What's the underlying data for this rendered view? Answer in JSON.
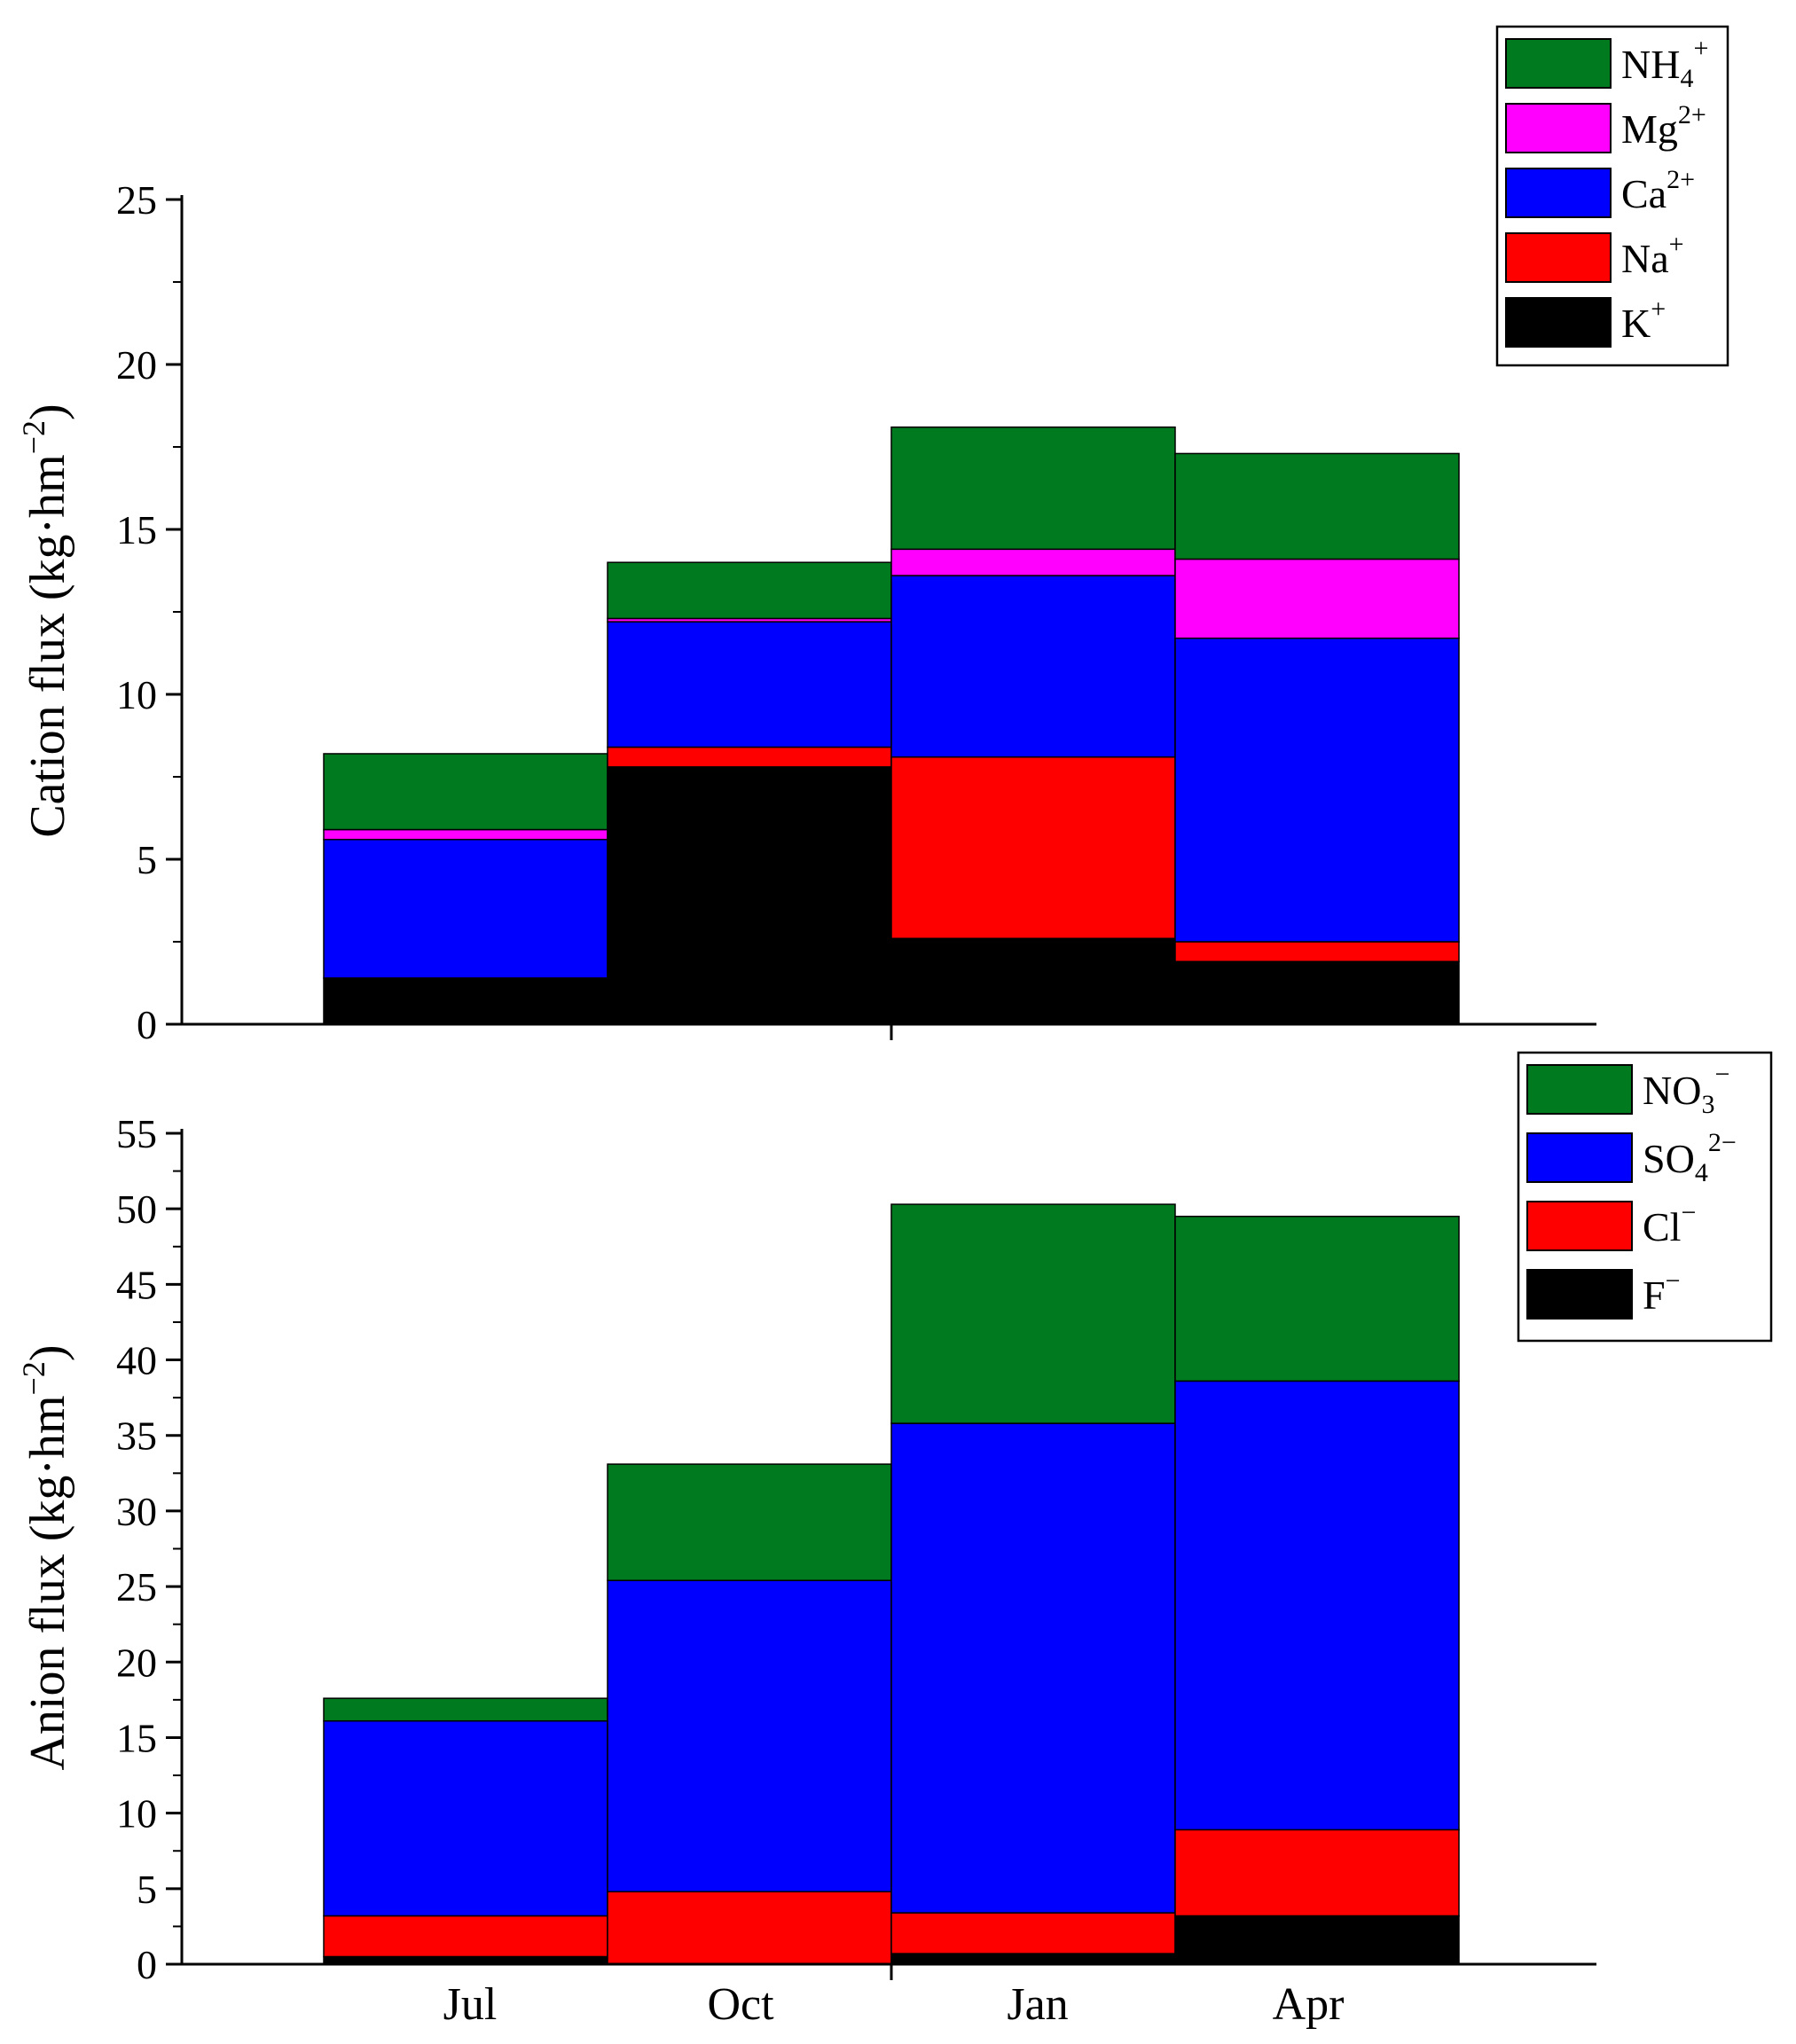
{
  "chart_data": [
    {
      "type": "bar",
      "stacked": true,
      "panel": "top",
      "title": "",
      "xlabel": "",
      "ylabel": "Cation flux (kg·hm",
      "ylabel_sup": "−2",
      "ylabel_close": ")",
      "ylim": [
        0,
        25
      ],
      "yticks": [
        0,
        5,
        10,
        15,
        20,
        25
      ],
      "categories": [
        "Jul",
        "Oct",
        "Jan",
        "Apr"
      ],
      "show_category_labels": false,
      "legend_position": "top-right",
      "series": [
        {
          "name": "K",
          "sup": "+",
          "color": "#000000",
          "values": [
            1.4,
            7.8,
            2.6,
            1.9
          ]
        },
        {
          "name": "Na",
          "sup": "+",
          "color": "#ff0000",
          "values": [
            0.0,
            0.6,
            5.5,
            0.6
          ]
        },
        {
          "name": "Ca",
          "sup": "2+",
          "color": "#0000ff",
          "values": [
            4.2,
            3.8,
            5.5,
            9.2
          ]
        },
        {
          "name": "Mg",
          "sup": "2+",
          "color": "#ff00ff",
          "values": [
            0.3,
            0.1,
            0.8,
            2.4
          ]
        },
        {
          "name": "NH",
          "sub": "4",
          "sup": "+",
          "color": "#007a1f",
          "values": [
            2.3,
            1.7,
            3.7,
            3.2
          ]
        }
      ]
    },
    {
      "type": "bar",
      "stacked": true,
      "panel": "bottom",
      "title": "",
      "xlabel": "",
      "ylabel": "Anion flux (kg·hm",
      "ylabel_sup": "−2",
      "ylabel_close": ")",
      "ylim": [
        0,
        55
      ],
      "yticks": [
        0,
        5,
        10,
        15,
        20,
        25,
        30,
        35,
        40,
        45,
        50,
        55
      ],
      "categories": [
        "Jul",
        "Oct",
        "Jan",
        "Apr"
      ],
      "show_category_labels": true,
      "legend_position": "top-right",
      "series": [
        {
          "name": "F",
          "sup": "−",
          "color": "#000000",
          "values": [
            0.5,
            0.0,
            0.7,
            3.2
          ]
        },
        {
          "name": "Cl",
          "sup": "−",
          "color": "#ff0000",
          "values": [
            2.7,
            4.8,
            2.7,
            5.7
          ]
        },
        {
          "name": "SO",
          "sub": "4",
          "sup": "2−",
          "color": "#0000ff",
          "values": [
            12.9,
            20.6,
            32.4,
            29.7
          ]
        },
        {
          "name": "NO",
          "sub": "3",
          "sup": "−",
          "color": "#007a1f",
          "values": [
            1.5,
            7.7,
            14.5,
            10.9
          ]
        }
      ]
    }
  ]
}
